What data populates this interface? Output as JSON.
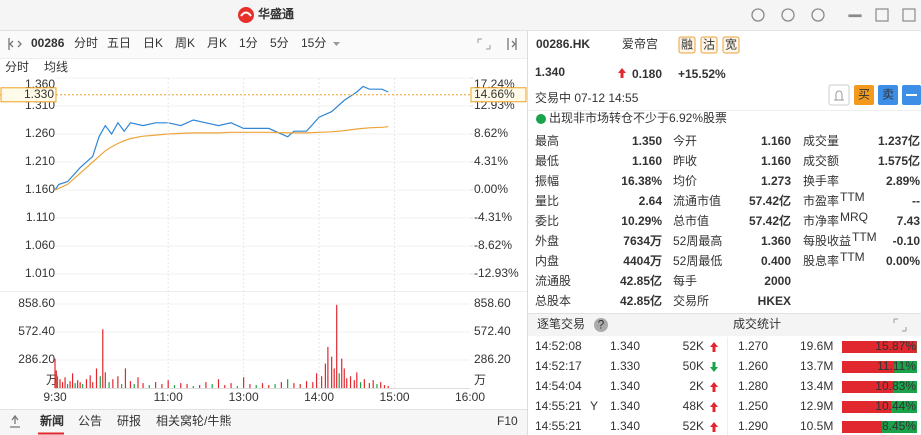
{
  "header": {
    "logo": "华盛通"
  },
  "toolbar": {
    "code": "00286",
    "tabs": [
      "分时",
      "五日",
      "日K",
      "周K",
      "月K",
      "1分",
      "5分",
      "15分"
    ]
  },
  "chart_data": [
    {
      "type": "line",
      "x": [
        0,
        3,
        10,
        20,
        30,
        35,
        40,
        45,
        50,
        55,
        60,
        70,
        80,
        90,
        100,
        110,
        120,
        130,
        140,
        150,
        170,
        185,
        190,
        200,
        210,
        220,
        230,
        240,
        245,
        250,
        260,
        265
      ],
      "series": [
        {
          "name": "分时",
          "color": "#2f86d6",
          "values": [
            1.16,
            1.17,
            1.175,
            1.2,
            1.22,
            1.255,
            1.275,
            1.26,
            1.28,
            1.265,
            1.28,
            1.275,
            1.28,
            1.28,
            1.275,
            1.285,
            1.28,
            1.275,
            1.28,
            1.27,
            1.27,
            1.255,
            1.265,
            1.265,
            1.29,
            1.3,
            1.32,
            1.335,
            1.345,
            1.34,
            1.34,
            1.335
          ]
        },
        {
          "name": "均线",
          "color": "#eea43a",
          "values": [
            1.16,
            1.163,
            1.17,
            1.19,
            1.21,
            1.22,
            1.23,
            1.237,
            1.243,
            1.248,
            1.252,
            1.256,
            1.258,
            1.26,
            1.261,
            1.262,
            1.262,
            1.262,
            1.263,
            1.263,
            1.263,
            1.262,
            1.262,
            1.262,
            1.263,
            1.264,
            1.266,
            1.269,
            1.27,
            1.271,
            1.272,
            1.273
          ]
        }
      ],
      "xlim": [
        0,
        330
      ],
      "ylim": [
        0.99,
        1.36
      ],
      "yticks": [
        {
          "value": 1.36,
          "label": "1.360"
        },
        {
          "value": 1.31,
          "label": "1.310"
        },
        {
          "value": 1.26,
          "label": "1.260"
        },
        {
          "value": 1.21,
          "label": "1.210"
        },
        {
          "value": 1.16,
          "label": "1.160"
        },
        {
          "value": 1.11,
          "label": "1.110"
        },
        {
          "value": 1.06,
          "label": "1.060"
        },
        {
          "value": 1.01,
          "label": "1.010"
        }
      ],
      "y2lim": [
        -14.66,
        17.24
      ],
      "y2ticks": [
        {
          "value": 17.24,
          "label": "17.24%"
        },
        {
          "value": 12.93,
          "label": "12.93%"
        },
        {
          "value": 8.62,
          "label": "8.62%"
        },
        {
          "value": 4.31,
          "label": "4.31%"
        },
        {
          "value": 0,
          "label": "0.00%"
        },
        {
          "value": -4.31,
          "label": "-4.31%"
        },
        {
          "value": -8.62,
          "label": "-8.62%"
        },
        {
          "value": -12.93,
          "label": "-12.93%"
        }
      ],
      "crosshair": {
        "value": 1.33,
        "label": "1.330",
        "pct_value": 14.66,
        "pct_label": "14.66%"
      },
      "grid": true
    },
    {
      "type": "bar",
      "x": [
        0,
        1,
        2,
        4,
        6,
        8,
        10,
        12,
        14,
        16,
        18,
        20,
        22,
        25,
        28,
        30,
        33,
        36,
        38,
        40,
        43,
        46,
        50,
        53,
        56,
        60,
        63,
        66,
        70,
        75,
        80,
        85,
        90,
        95,
        100,
        105,
        110,
        115,
        120,
        125,
        130,
        135,
        140,
        145,
        150,
        155,
        160,
        165,
        170,
        175,
        180,
        185,
        190,
        195,
        200,
        205,
        208,
        212,
        215,
        217,
        220,
        222,
        224,
        226,
        228,
        230,
        232,
        235,
        238,
        240,
        243,
        246,
        250,
        253,
        256,
        259,
        262,
        265
      ],
      "values": [
        300,
        180,
        120,
        90,
        60,
        110,
        40,
        70,
        150,
        50,
        80,
        60,
        40,
        90,
        130,
        60,
        200,
        120,
        600,
        160,
        60,
        90,
        120,
        40,
        200,
        70,
        40,
        110,
        50,
        30,
        60,
        40,
        80,
        30,
        50,
        40,
        20,
        30,
        60,
        40,
        90,
        30,
        50,
        20,
        110,
        40,
        30,
        50,
        30,
        40,
        60,
        90,
        50,
        40,
        70,
        60,
        150,
        120,
        250,
        420,
        320,
        200,
        850,
        150,
        300,
        200,
        100,
        120,
        80,
        160,
        60,
        90,
        50,
        80,
        40,
        60,
        30,
        20
      ],
      "colors": [
        "#e0282e",
        "#e0282e",
        "#1aa34a",
        "#e0282e",
        "#e0282e",
        "#e0282e",
        "#1aa34a",
        "#e0282e",
        "#e0282e",
        "#1aa34a",
        "#e0282e",
        "#e0282e",
        "#1aa34a",
        "#e0282e",
        "#e0282e",
        "#e0282e",
        "#e0282e",
        "#1aa34a",
        "#e0282e",
        "#e0282e",
        "#1aa34a",
        "#e0282e",
        "#e0282e",
        "#1aa34a",
        "#e0282e",
        "#e0282e",
        "#1aa34a",
        "#e0282e",
        "#e0282e",
        "#1aa34a",
        "#e0282e",
        "#e0282e",
        "#e0282e",
        "#1aa34a",
        "#e0282e",
        "#e0282e",
        "#1aa34a",
        "#e0282e",
        "#e0282e",
        "#1aa34a",
        "#e0282e",
        "#e0282e",
        "#e0282e",
        "#1aa34a",
        "#e0282e",
        "#e0282e",
        "#1aa34a",
        "#e0282e",
        "#e0282e",
        "#1aa34a",
        "#e0282e",
        "#1aa34a",
        "#e0282e",
        "#e0282e",
        "#e0282e",
        "#e0282e",
        "#e0282e",
        "#e0282e",
        "#e0282e",
        "#e0282e",
        "#e0282e",
        "#e0282e",
        "#e0282e",
        "#1aa34a",
        "#e0282e",
        "#e0282e",
        "#e0282e",
        "#e0282e",
        "#e0282e",
        "#e0282e",
        "#1aa34a",
        "#e0282e",
        "#e0282e",
        "#e0282e",
        "#1aa34a",
        "#e0282e",
        "#e0282e",
        "#e0282e"
      ],
      "xlim": [
        0,
        330
      ],
      "xticks": [
        {
          "value": 0,
          "label": "9:30"
        },
        {
          "value": 90,
          "label": "11:00"
        },
        {
          "value": 150,
          "label": "13:00"
        },
        {
          "value": 210,
          "label": "14:00"
        },
        {
          "value": 270,
          "label": "15:00"
        },
        {
          "value": 330,
          "label": "16:00"
        }
      ],
      "ylim": [
        0,
        858.6
      ],
      "yticks": [
        {
          "value": 858.6,
          "label": "858.60"
        },
        {
          "value": 572.4,
          "label": "572.40"
        },
        {
          "value": 286.2,
          "label": "286.20"
        }
      ],
      "unit": "万",
      "grid": true
    }
  ],
  "bottom_tabs": [
    "新闻",
    "公告",
    "研报",
    "相关窝轮/牛熊",
    "F10"
  ],
  "quote": {
    "code": "00286.HK",
    "name": "爱帝宫",
    "badges": [
      "融",
      "沽",
      "宽"
    ],
    "price": "1.340",
    "change": "0.180",
    "change_pct": "+15.52%",
    "status": "交易中 07-12 14:55",
    "buy": "买",
    "sell": "卖",
    "notice": "出现非市场转仓不少于6.92%股票"
  },
  "stats": {
    "rows": [
      [
        {
          "label": "最高",
          "value": "1.350",
          "color": "#e0282e"
        },
        {
          "label": "今开",
          "value": "1.160",
          "color": "#999999"
        },
        {
          "label": "成交量",
          "value": "1.237亿"
        }
      ],
      [
        {
          "label": "最低",
          "value": "1.160",
          "color": "#999999"
        },
        {
          "label": "昨收",
          "value": "1.160"
        },
        {
          "label": "成交额",
          "value": "1.575亿"
        }
      ],
      [
        {
          "label": "振幅",
          "value": "16.38%"
        },
        {
          "label": "均价",
          "value": "1.273"
        },
        {
          "label": "换手率",
          "value": "2.89%"
        }
      ],
      [
        {
          "label": "量比",
          "value": "2.64"
        },
        {
          "label": "流通市值",
          "value": "57.42亿"
        },
        {
          "label": "市盈率",
          "sup": "TTM",
          "value": "--"
        }
      ],
      [
        {
          "label": "委比",
          "value": "10.29%"
        },
        {
          "label": "总市值",
          "value": "57.42亿"
        },
        {
          "label": "市净率",
          "sup": "MRQ",
          "value": "7.43"
        }
      ],
      [
        {
          "label": "外盘",
          "value": "7634万",
          "color": "#e0282e"
        },
        {
          "label": "52周最高",
          "value": "1.360",
          "color": "#e0282e"
        },
        {
          "label": "每股收益",
          "sup": "TTM",
          "value": "-0.10"
        }
      ],
      [
        {
          "label": "内盘",
          "value": "4404万",
          "color": "#1aa34a"
        },
        {
          "label": "52周最低",
          "value": "0.400",
          "color": "#1aa34a"
        },
        {
          "label": "股息率",
          "sup": "TTM",
          "value": "0.00%"
        }
      ],
      [
        {
          "label": "流通股",
          "value": "42.85亿"
        },
        {
          "label": "每手",
          "value": "2000"
        }
      ],
      [
        {
          "label": "总股本",
          "value": "42.85亿"
        },
        {
          "label": "交易所",
          "value": "HKEX"
        }
      ]
    ]
  },
  "trades": {
    "title": "逐笔交易",
    "rows": [
      {
        "time": "14:52:08",
        "price": "1.340",
        "volume": "52K",
        "dir": "up"
      },
      {
        "time": "14:52:17",
        "price": "1.330",
        "volume": "50K",
        "dir": "down"
      },
      {
        "time": "14:54:04",
        "price": "1.340",
        "volume": "2K",
        "dir": "up"
      },
      {
        "time": "14:55:21",
        "flag": "Y",
        "price": "1.340",
        "volume": "48K",
        "dir": "up"
      },
      {
        "time": "14:55:21",
        "price": "1.340",
        "volume": "52K",
        "dir": "up"
      }
    ]
  },
  "volume_stats": {
    "title": "成交统计",
    "prices": [
      "1.270",
      "1.260",
      "1.280",
      "1.250",
      "1.290"
    ],
    "volumes": [
      "19.6M",
      "13.7M",
      "13.4M",
      "12.9M",
      "10.5M"
    ],
    "values": [
      15.87,
      11.11,
      10.83,
      10.44,
      8.45
    ],
    "value_labels": [
      "15.87%",
      "11.11%",
      "10.83%",
      "10.44%",
      "8.45%"
    ]
  }
}
